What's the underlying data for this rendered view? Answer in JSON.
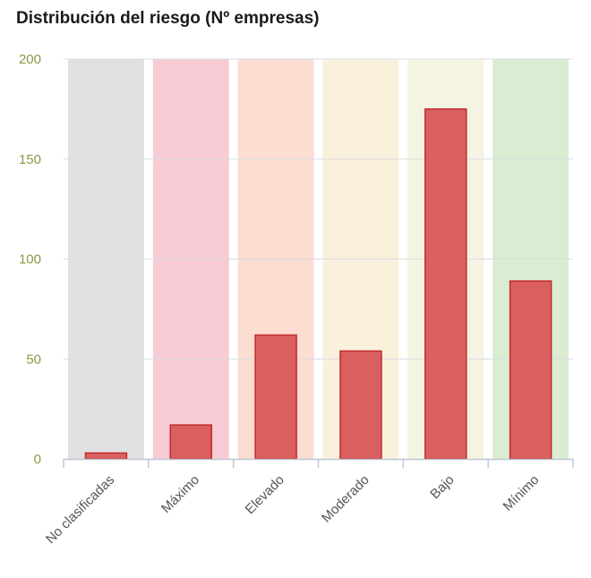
{
  "chart_data": {
    "type": "bar",
    "title": "Distribución del riesgo (Nº empresas)",
    "xlabel": "",
    "ylabel": "",
    "categories": [
      "No clasificadas",
      "Máximo",
      "Elevado",
      "Moderado",
      "Bajo",
      "Mínimo"
    ],
    "values": [
      3,
      17,
      62,
      54,
      175,
      89
    ],
    "ylim": [
      0,
      200
    ],
    "yticks": [
      0,
      50,
      100,
      150,
      200
    ],
    "grid": true,
    "legend": "none",
    "band_colors": [
      "#e0e0e0",
      "#f6cbd4",
      "#fcddd2",
      "#faf1dd",
      "#f5f4e2",
      "#daecd2"
    ],
    "bar_color": "#da5f5f",
    "bar_border_color": "#c22c2c",
    "tick_label_color": "#8a9a44"
  }
}
